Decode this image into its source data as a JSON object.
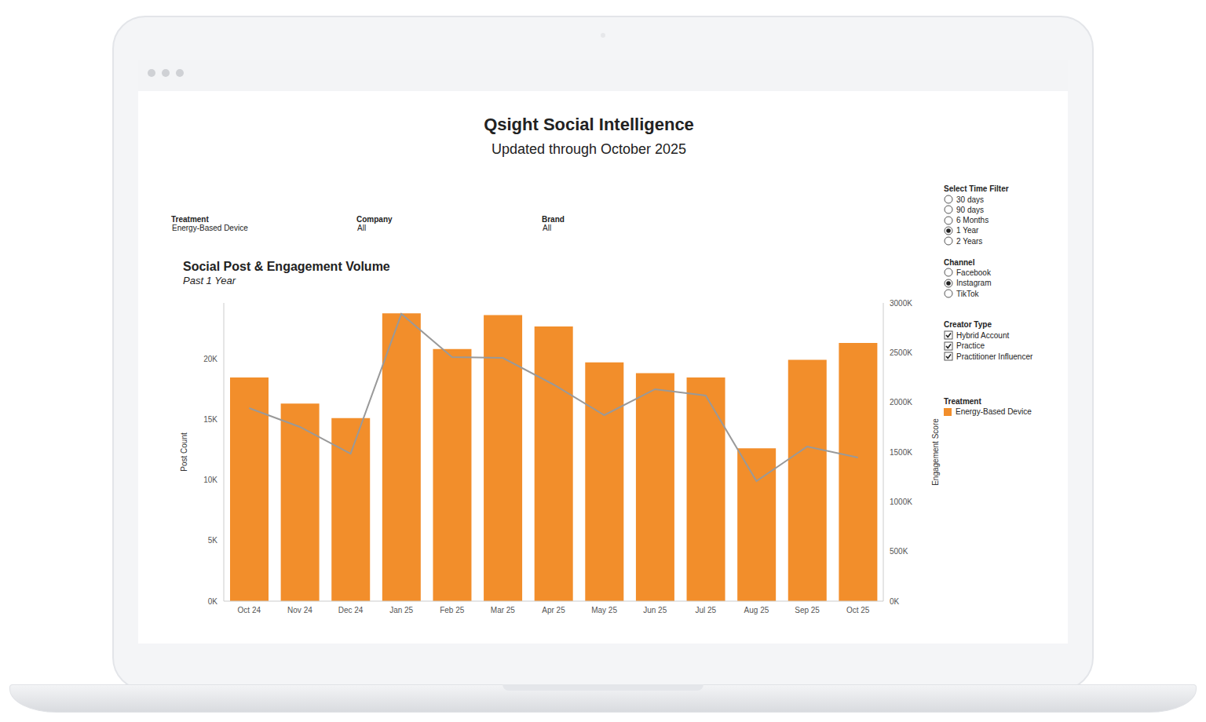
{
  "header": {
    "title": "Qsight Social Intelligence",
    "subtitle": "Updated through October 2025"
  },
  "filters": [
    {
      "label": "Treatment",
      "value": "Energy-Based Device"
    },
    {
      "label": "Company",
      "value": "All"
    },
    {
      "label": "Brand",
      "value": "All"
    }
  ],
  "panel": {
    "time_filter": {
      "title": "Select Time Filter",
      "options": [
        "30 days",
        "90 days",
        "6 Months",
        "1 Year",
        "2 Years"
      ],
      "selected": "1 Year"
    },
    "channel": {
      "title": "Channel",
      "options": [
        "Facebook",
        "Instagram",
        "TikTok"
      ],
      "selected": "Instagram"
    },
    "creator_type": {
      "title": "Creator Type",
      "options": [
        "Hybrid Account",
        "Practice",
        "Practitioner Influencer"
      ],
      "checked": [
        "Hybrid Account",
        "Practice",
        "Practitioner Influencer"
      ]
    },
    "legend_title": "Treatment"
  },
  "chart_data": {
    "type": "bar",
    "title": "Social Post & Engagement Volume",
    "subtitle": "Past 1 Year",
    "ylabel": "Post Count",
    "y2label": "Engagement Score",
    "categories": [
      "Oct 24",
      "Nov 24",
      "Dec 24",
      "Jan 25",
      "Feb 25",
      "Mar 25",
      "Apr 25",
      "May 25",
      "Jun 25",
      "Jul 25",
      "Aug 25",
      "Sep 25",
      "Oct 25"
    ],
    "series": [
      {
        "name": "Energy-Based Device",
        "type": "bar",
        "color": "#f28e2b",
        "values": [
          18450,
          16300,
          15100,
          23750,
          20800,
          23600,
          22650,
          19700,
          18800,
          18450,
          12600,
          19900,
          21300
        ]
      },
      {
        "name": "Engagement Score",
        "type": "line",
        "axis": "y2",
        "color": "#999999",
        "marker": "none",
        "line_style": "solid",
        "values": [
          1942000,
          1753000,
          1484000,
          2889000,
          2455000,
          2447000,
          2179000,
          1871000,
          2132000,
          2068000,
          1208000,
          1555000,
          1445000
        ]
      }
    ],
    "ylim": [
      0,
      24600
    ],
    "yticks": [
      {
        "value": 0,
        "label": "0K"
      },
      {
        "value": 5000,
        "label": "5K"
      },
      {
        "value": 10000,
        "label": "10K"
      },
      {
        "value": 15000,
        "label": "15K"
      },
      {
        "value": 20000,
        "label": "20K"
      }
    ],
    "y2lim": [
      0,
      3000000
    ],
    "y2ticks": [
      {
        "value": 0,
        "label": "0K"
      },
      {
        "value": 500000,
        "label": "500K"
      },
      {
        "value": 1000000,
        "label": "1000K"
      },
      {
        "value": 1500000,
        "label": "1500K"
      },
      {
        "value": 2000000,
        "label": "2000K"
      },
      {
        "value": 2500000,
        "label": "2500K"
      },
      {
        "value": 3000000,
        "label": "3000K"
      }
    ],
    "grid": false,
    "legend": "right"
  }
}
